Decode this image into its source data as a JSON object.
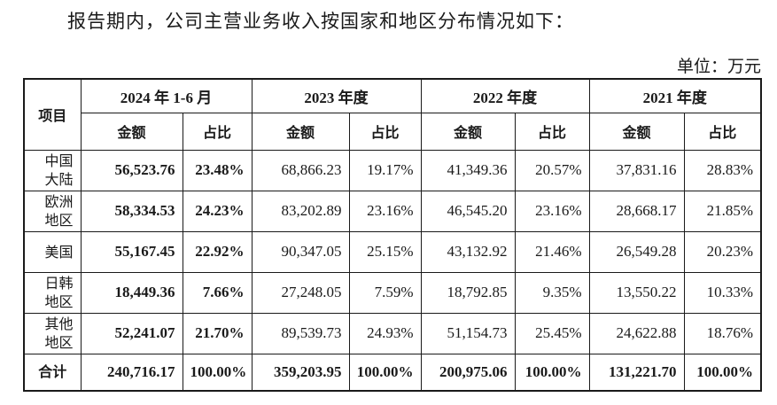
{
  "intro_text": "报告期内，公司主营业务收入按国家和地区分布情况如下：",
  "unit_text": "单位：万元",
  "table": {
    "item_header": "项目",
    "periods": [
      "2024 年 1-6 月",
      "2023 年度",
      "2022 年度",
      "2021 年度"
    ],
    "sub_headers": [
      "金额",
      "占比",
      "金额",
      "占比",
      "金额",
      "占比",
      "金额",
      "占比"
    ],
    "rows": [
      {
        "item_line1": "中国",
        "item_line2": "大陆",
        "values": [
          "56,523.76",
          "23.48%",
          "68,866.23",
          "19.17%",
          "41,349.36",
          "20.57%",
          "37,831.16",
          "28.83%"
        ]
      },
      {
        "item_line1": "欧洲",
        "item_line2": "地区",
        "values": [
          "58,334.53",
          "24.23%",
          "83,202.89",
          "23.16%",
          "46,545.20",
          "23.16%",
          "28,668.17",
          "21.85%"
        ]
      },
      {
        "item_line1": "美国",
        "item_line2": "",
        "values": [
          "55,167.45",
          "22.92%",
          "90,347.05",
          "25.15%",
          "43,132.92",
          "21.46%",
          "26,549.28",
          "20.23%"
        ]
      },
      {
        "item_line1": "日韩",
        "item_line2": "地区",
        "values": [
          "18,449.36",
          "7.66%",
          "27,248.05",
          "7.59%",
          "18,792.85",
          "9.35%",
          "13,550.22",
          "10.33%"
        ]
      },
      {
        "item_line1": "其他",
        "item_line2": "地区",
        "values": [
          "52,241.07",
          "21.70%",
          "89,539.73",
          "24.93%",
          "51,154.73",
          "25.45%",
          "24,622.88",
          "18.76%"
        ]
      }
    ],
    "total": {
      "label": "合计",
      "values": [
        "240,716.17",
        "100.00%",
        "359,203.95",
        "100.00%",
        "200,975.06",
        "100.00%",
        "131,221.70",
        "100.00%"
      ]
    }
  }
}
